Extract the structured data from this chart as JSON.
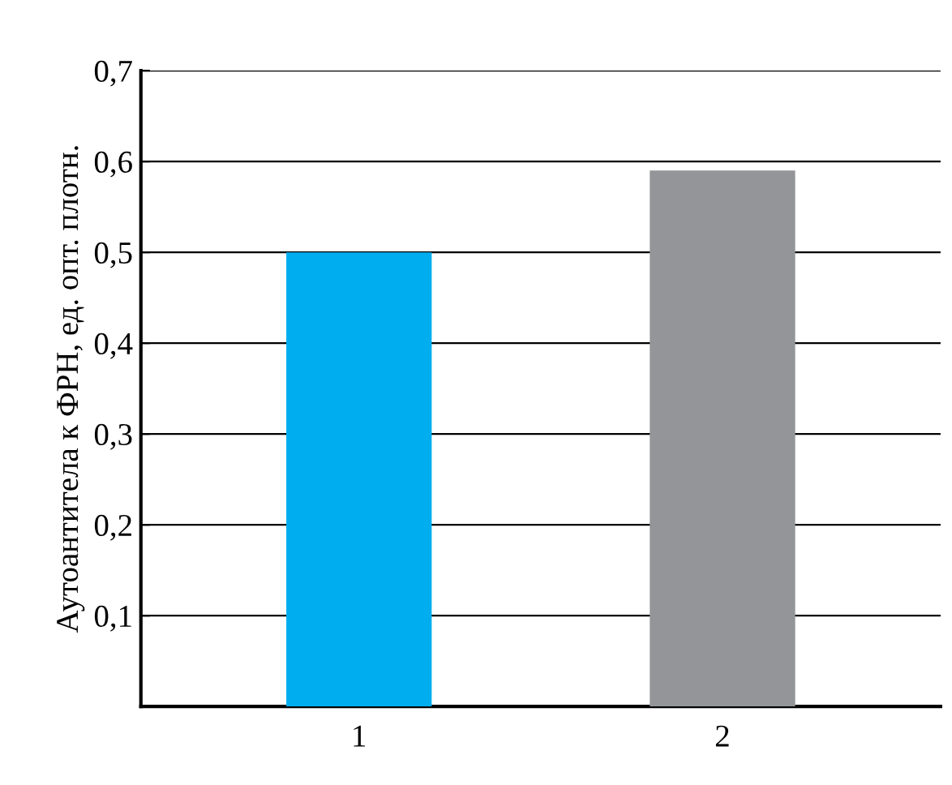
{
  "chart_data": {
    "type": "bar",
    "ylabel": "Аутоантитела к ФРН, ед. опт. плотн.",
    "categories": [
      "1",
      "2"
    ],
    "values": [
      0.5,
      0.59
    ],
    "colors": [
      "#00aeef",
      "#939598"
    ],
    "ylim": [
      0,
      0.7
    ],
    "yticks": [
      {
        "value": 0,
        "label": null
      },
      {
        "value": 0.1,
        "label": "0,1"
      },
      {
        "value": 0.2,
        "label": "0,2"
      },
      {
        "value": 0.3,
        "label": "0,3"
      },
      {
        "value": 0.4,
        "label": "0,4"
      },
      {
        "value": 0.5,
        "label": "0,5"
      },
      {
        "value": 0.6,
        "label": "0,6"
      },
      {
        "value": 0.7,
        "label": "0,7"
      }
    ],
    "grid": "y"
  }
}
